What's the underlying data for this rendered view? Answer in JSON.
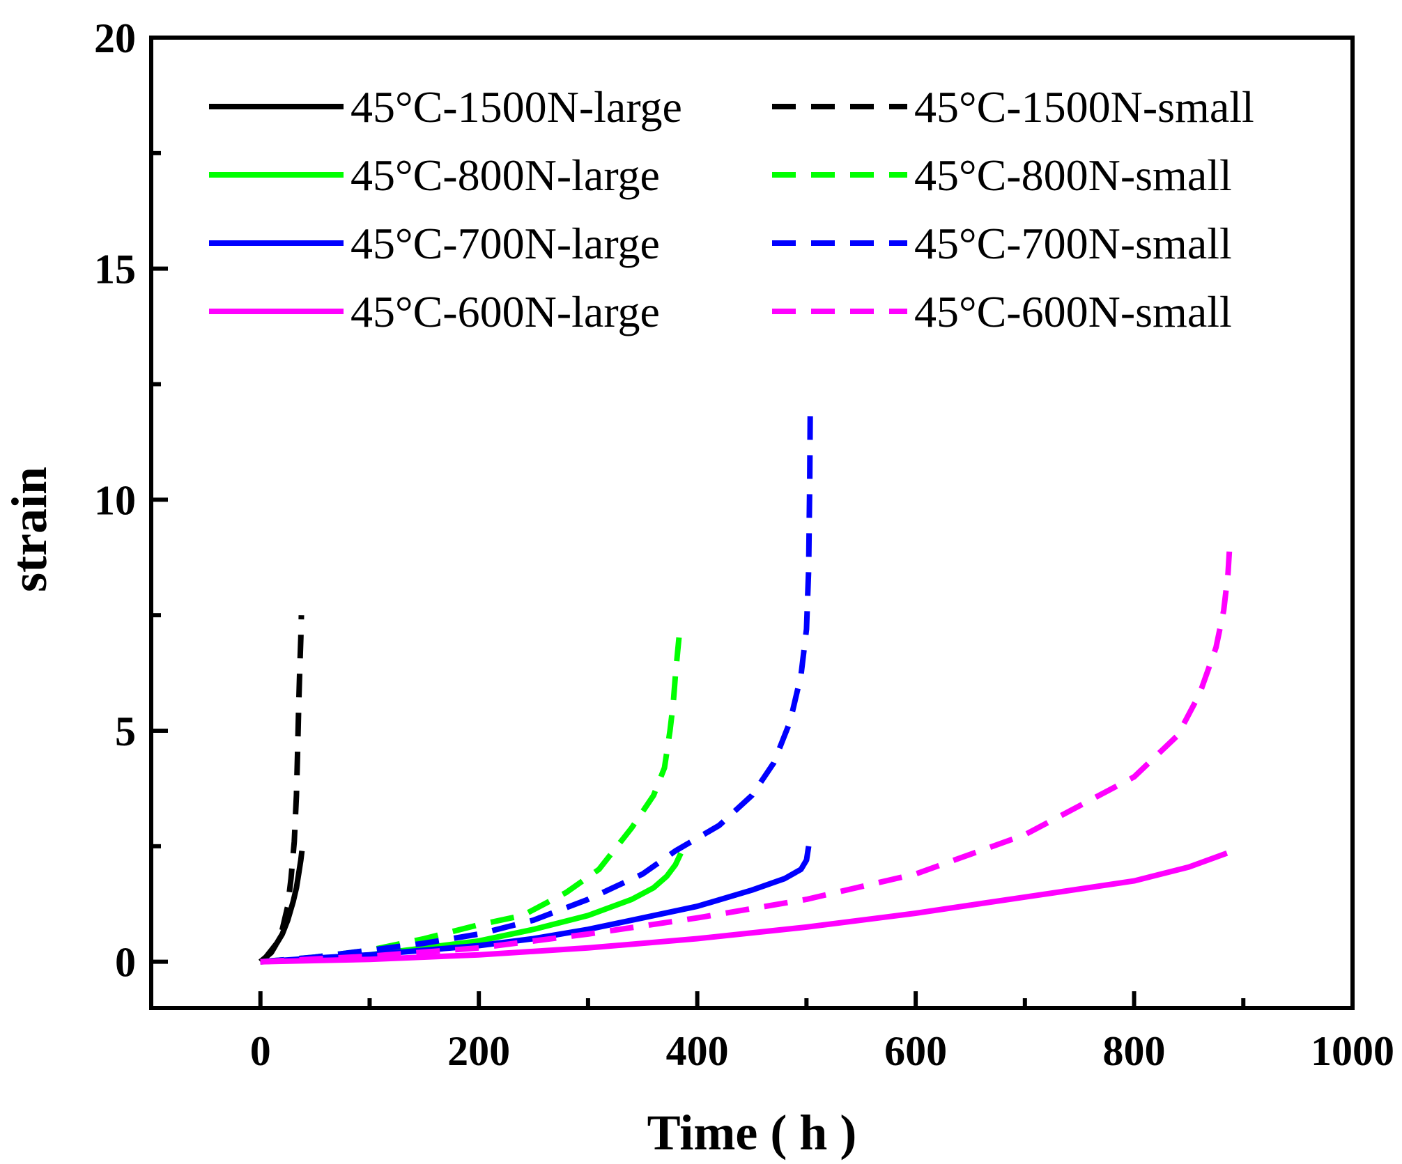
{
  "chart_data": {
    "type": "line",
    "title": "",
    "xlabel": "Time ( h )",
    "ylabel": "strain",
    "xlim": [
      -100,
      1000
    ],
    "ylim": [
      -1,
      20
    ],
    "xticks": [
      0,
      200,
      400,
      600,
      800,
      1000
    ],
    "yticks": [
      0,
      5,
      10,
      15,
      20
    ],
    "legend_position": "top",
    "series": [
      {
        "name": "45°C-1500N-large",
        "color": "#000000",
        "dash": "solid",
        "x": [
          0,
          5,
          10,
          15,
          20,
          25,
          30,
          33,
          35,
          37,
          38
        ],
        "y": [
          0,
          0.1,
          0.25,
          0.4,
          0.6,
          0.9,
          1.3,
          1.6,
          1.9,
          2.2,
          2.4
        ]
      },
      {
        "name": "45°C-1500N-small",
        "color": "#000000",
        "dash": "dashed",
        "x": [
          0,
          5,
          10,
          15,
          20,
          25,
          28,
          31,
          33,
          34,
          35,
          36,
          37,
          37.5
        ],
        "y": [
          0,
          0.1,
          0.2,
          0.4,
          0.7,
          1.2,
          1.8,
          2.6,
          3.6,
          4.5,
          5.5,
          6.3,
          7.0,
          7.5
        ]
      },
      {
        "name": "45°C-800N-large",
        "color": "#00ff00",
        "dash": "solid",
        "x": [
          0,
          50,
          100,
          150,
          200,
          250,
          300,
          340,
          360,
          372,
          380,
          385
        ],
        "y": [
          0,
          0.05,
          0.15,
          0.3,
          0.45,
          0.7,
          1.0,
          1.35,
          1.6,
          1.85,
          2.1,
          2.35
        ]
      },
      {
        "name": "45°C-800N-small",
        "color": "#00ff00",
        "dash": "dashed",
        "x": [
          0,
          50,
          100,
          150,
          200,
          240,
          280,
          310,
          340,
          360,
          370,
          375,
          378,
          380,
          382,
          384
        ],
        "y": [
          0,
          0.1,
          0.25,
          0.5,
          0.8,
          1.0,
          1.5,
          2.0,
          2.9,
          3.6,
          4.2,
          5.0,
          5.6,
          6.2,
          6.7,
          7.2
        ]
      },
      {
        "name": "45°C-700N-large",
        "color": "#0000ff",
        "dash": "solid",
        "x": [
          0,
          50,
          100,
          150,
          200,
          250,
          300,
          350,
          400,
          450,
          480,
          495,
          500,
          502
        ],
        "y": [
          0,
          0.08,
          0.15,
          0.25,
          0.35,
          0.5,
          0.7,
          0.95,
          1.2,
          1.55,
          1.8,
          2.0,
          2.2,
          2.5
        ]
      },
      {
        "name": "45°C-700N-small",
        "color": "#0000ff",
        "dash": "dashed",
        "x": [
          0,
          50,
          100,
          150,
          200,
          250,
          300,
          350,
          380,
          420,
          450,
          470,
          485,
          495,
          500,
          502,
          503,
          503.5
        ],
        "y": [
          0,
          0.1,
          0.25,
          0.4,
          0.6,
          0.9,
          1.35,
          1.9,
          2.4,
          2.95,
          3.6,
          4.3,
          5.2,
          6.2,
          7.2,
          8.5,
          10.5,
          12.0
        ]
      },
      {
        "name": "45°C-600N-large",
        "color": "#ff00ff",
        "dash": "solid",
        "x": [
          0,
          100,
          200,
          300,
          400,
          500,
          600,
          700,
          800,
          850,
          885
        ],
        "y": [
          0,
          0.05,
          0.15,
          0.3,
          0.5,
          0.75,
          1.05,
          1.4,
          1.75,
          2.05,
          2.35
        ]
      },
      {
        "name": "45°C-600N-small",
        "color": "#ff00ff",
        "dash": "dashed",
        "x": [
          0,
          100,
          200,
          300,
          400,
          500,
          600,
          700,
          800,
          840,
          860,
          875,
          882,
          886,
          888
        ],
        "y": [
          0,
          0.12,
          0.3,
          0.6,
          0.95,
          1.35,
          1.9,
          2.75,
          4.0,
          4.9,
          5.8,
          6.8,
          7.6,
          8.4,
          9.2
        ]
      }
    ]
  }
}
